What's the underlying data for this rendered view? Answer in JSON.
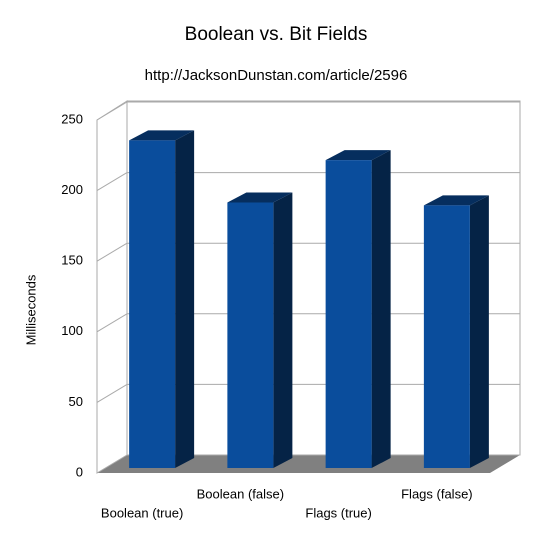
{
  "chart_data": {
    "type": "bar3d",
    "title": "Boolean vs. Bit Fields",
    "subtitle": "http://JacksonDunstan.com/article/2596",
    "y_label": "Milliseconds",
    "categories": [
      "Boolean (true)",
      "Boolean (false)",
      "Flags (true)",
      "Flags (false)"
    ],
    "values": [
      232,
      188,
      218,
      186
    ],
    "color": "#0a4d9c",
    "ylim": [
      0,
      250
    ],
    "yticks": [
      0,
      50,
      100,
      150,
      200,
      250
    ],
    "grid": true
  }
}
